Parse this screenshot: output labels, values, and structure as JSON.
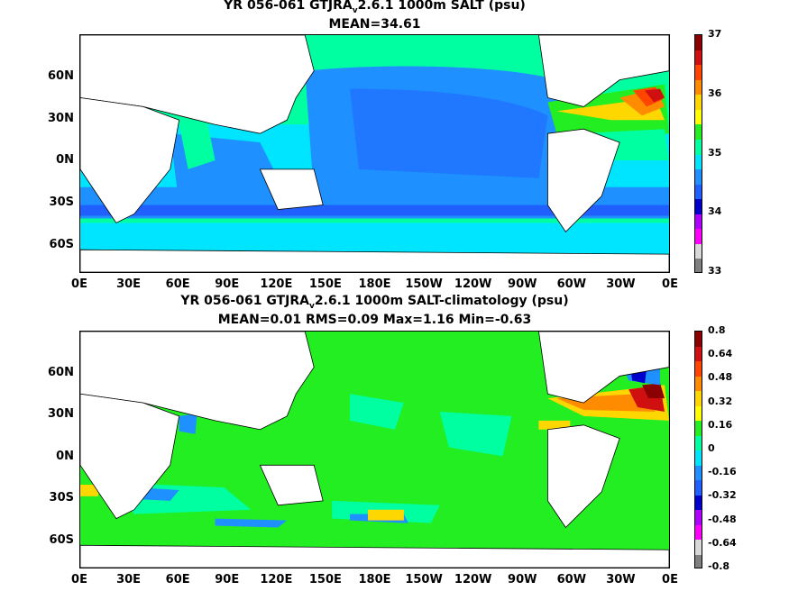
{
  "panels": [
    {
      "title_pre": "YR 056-061 GTJRA",
      "title_sub": "v",
      "title_post": "2.6.1 1000m SALT (psu)",
      "stats": "MEAN=34.61",
      "colorbar": {
        "labels": [
          "37",
          "36",
          "35",
          "34",
          "33"
        ],
        "colors": [
          "#8b0000",
          "#d01010",
          "#ff4500",
          "#ff8c00",
          "#ffd700",
          "#ffff00",
          "#22ee22",
          "#00ffa0",
          "#00e5ff",
          "#1e90ff",
          "#2060ff",
          "#0000cd",
          "#b000ff",
          "#ff00ff",
          "#d8d8d8",
          "#808080"
        ]
      }
    },
    {
      "title_pre": "YR 056-061 GTJRA",
      "title_sub": "v",
      "title_post": "2.6.1 1000m SALT-climatology (psu)",
      "stats": "MEAN=0.01   RMS=0.09   Max=1.16   Min=-0.63",
      "colorbar": {
        "labels": [
          "0.8",
          "0.64",
          "0.48",
          "0.32",
          "0.16",
          "0",
          "-0.16",
          "-0.32",
          "-0.48",
          "-0.64",
          "-0.8"
        ],
        "colors": [
          "#8b0000",
          "#d01010",
          "#ff4500",
          "#ff8c00",
          "#ffd700",
          "#ffff00",
          "#22ee22",
          "#00ffa0",
          "#00e5ff",
          "#1e90ff",
          "#2060ff",
          "#0000cd",
          "#b000ff",
          "#ff00ff",
          "#d8d8d8",
          "#808080"
        ]
      }
    }
  ],
  "axes": {
    "lon_ticks": [
      "0E",
      "30E",
      "60E",
      "90E",
      "120E",
      "150E",
      "180E",
      "150W",
      "120W",
      "90W",
      "60W",
      "30W",
      "0E"
    ],
    "lat_ticks": [
      "60N",
      "30N",
      "0N",
      "30S",
      "60S"
    ],
    "lat_values": [
      60,
      30,
      0,
      -30,
      -60
    ],
    "lon_range": [
      0,
      360
    ],
    "lat_range": [
      -80,
      90
    ]
  },
  "colors": {
    "land": "#ffffff",
    "ocean_base_top": "#1e90ff",
    "ocean_base_bottom": "#22ee22"
  }
}
